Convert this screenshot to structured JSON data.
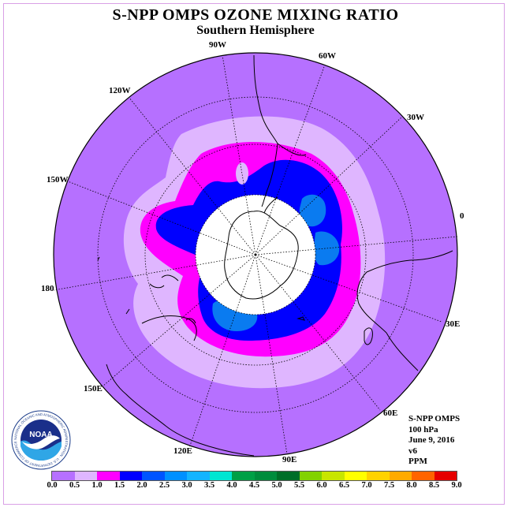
{
  "title": "S-NPP OMPS OZONE MIXING RATIO",
  "subtitle": "Southern Hemisphere",
  "longitude_labels": [
    "0",
    "30W",
    "60W",
    "90W",
    "120W",
    "150W",
    "180",
    "150E",
    "120E",
    "90E",
    "60E",
    "30E"
  ],
  "info": {
    "product": "S-NPP OMPS",
    "level": "100 hPa",
    "date": "June 9, 2016",
    "version": "v6",
    "units": "PPM"
  },
  "logo": {
    "text": "NOAA",
    "ring_text": "NATIONAL OCEANIC AND ATMOSPHERIC ADMINISTRATION · U.S. DEPARTMENT OF COMMERCE"
  },
  "colorbar": {
    "ticks": [
      "0.0",
      "0.5",
      "1.0",
      "1.5",
      "2.0",
      "2.5",
      "3.0",
      "3.5",
      "4.0",
      "4.5",
      "5.0",
      "5.5",
      "6.0",
      "6.5",
      "7.0",
      "7.5",
      "8.0",
      "8.5",
      "9.0"
    ],
    "colors": [
      "#b670ff",
      "#dfb6ff",
      "#ff00ff",
      "#0000ff",
      "#0054ff",
      "#0090ff",
      "#14b4ff",
      "#00e6d2",
      "#00a046",
      "#008c3c",
      "#006e28",
      "#82d200",
      "#c8e600",
      "#ffff00",
      "#ffd200",
      "#ffaa00",
      "#ff6400",
      "#e60000",
      "#8c5a3c"
    ]
  },
  "map_colors": {
    "outer": "#b670ff",
    "light": "#dfb6ff",
    "magenta": "#ff00ff",
    "blue": "#0000ff",
    "mid_blue": "#0a7bf0",
    "pole_hole": "#ffffff",
    "coast": "#000000",
    "grid": "#000000"
  }
}
